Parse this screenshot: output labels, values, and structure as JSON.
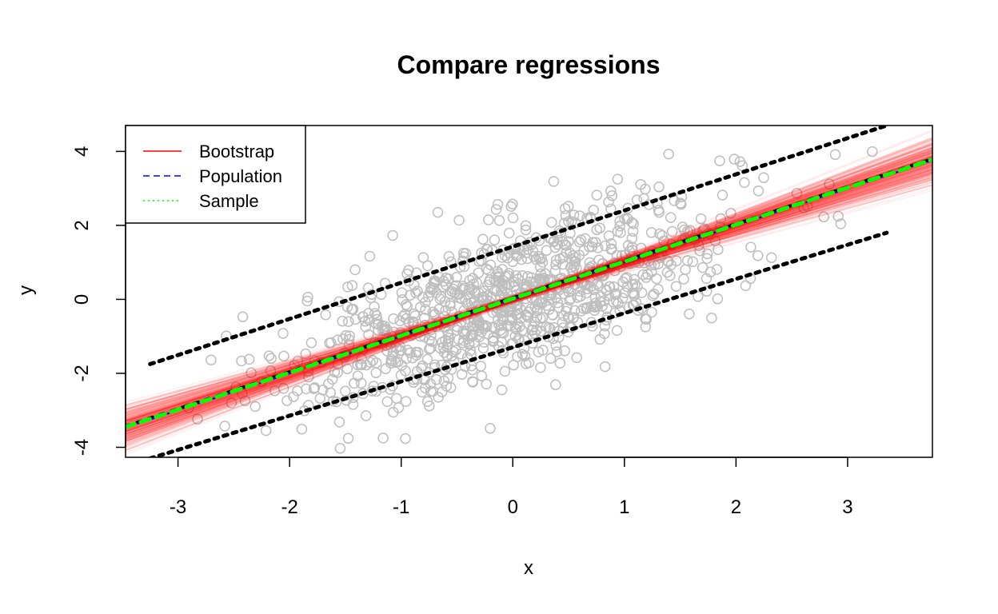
{
  "chart_data": {
    "type": "scatter",
    "title": "Compare regressions",
    "xlabel": "x",
    "ylabel": "y",
    "xlim": [
      -3.47,
      3.76
    ],
    "ylim": [
      -4.27,
      4.7
    ],
    "xticks": [
      -3,
      -2,
      -1,
      0,
      1,
      2,
      3
    ],
    "yticks": [
      -4,
      -2,
      0,
      2,
      4
    ],
    "grid": false,
    "legend": {
      "placement": "top-left",
      "entries": [
        {
          "label": "Bootstrap",
          "color": "#ff0000",
          "style": "solid"
        },
        {
          "label": "Population",
          "color": "#0000ff",
          "style": "dashed"
        },
        {
          "label": "Sample",
          "color": "#00ff00",
          "style": "dotted"
        }
      ]
    },
    "colors": {
      "points": "#bebebe",
      "bootstrap": "#ff0000",
      "population": "#0000ff",
      "sample": "#00ff00",
      "confidence_band": "#000000"
    },
    "point_cloud": {
      "count": 1000,
      "x_mean": 0,
      "x_sd": 1,
      "intercept": 0,
      "slope": 1,
      "noise_sd": 1
    },
    "bootstrap": {
      "count": 300,
      "slope_mean": 1.0,
      "slope_sd": 0.08,
      "intercept_mean": 0.0,
      "intercept_sd": 0.045
    },
    "population_line": {
      "intercept": 0,
      "slope": 1
    },
    "sample_line": {
      "intercept": 0.02,
      "slope": 1.0
    },
    "confidence_band": {
      "x_range": [
        -3.25,
        3.35
      ],
      "upper": {
        "at_x_min": -1.75,
        "at_x_max": 4.7
      },
      "lower": {
        "at_x_min": -4.3,
        "at_x_max": 1.8
      }
    }
  }
}
